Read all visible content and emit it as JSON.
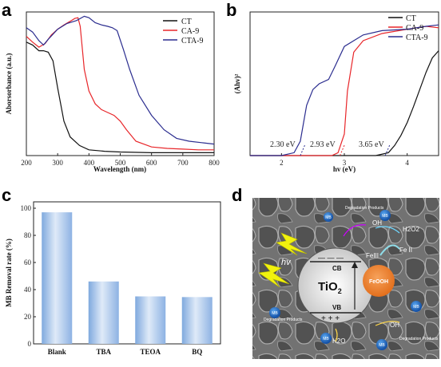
{
  "panels": {
    "a": {
      "letter": "a"
    },
    "b": {
      "letter": "b"
    },
    "c": {
      "letter": "c"
    },
    "d": {
      "letter": "d"
    }
  },
  "colors": {
    "CT": "#111111",
    "CA-9": "#e8262a",
    "CTA-9": "#2b2d8f",
    "bar": "#9fc1e8"
  },
  "chart_data": [
    {
      "id": "a",
      "type": "line",
      "xlabel": "Wavelength (nm)",
      "ylabel": "Aborsorbance (a.u.)",
      "xlim": [
        200,
        800
      ],
      "xticks": [
        200,
        300,
        400,
        500,
        600,
        700,
        800
      ],
      "ylim": [
        0,
        1
      ],
      "legend_position": "top-right",
      "series": [
        {
          "name": "CT",
          "color": "#111111",
          "points": [
            [
              200,
              0.79
            ],
            [
              220,
              0.77
            ],
            [
              240,
              0.73
            ],
            [
              255,
              0.73
            ],
            [
              270,
              0.72
            ],
            [
              285,
              0.66
            ],
            [
              300,
              0.47
            ],
            [
              320,
              0.24
            ],
            [
              340,
              0.13
            ],
            [
              370,
              0.07
            ],
            [
              400,
              0.04
            ],
            [
              450,
              0.03
            ],
            [
              500,
              0.025
            ],
            [
              600,
              0.02
            ],
            [
              700,
              0.02
            ],
            [
              800,
              0.02
            ]
          ]
        },
        {
          "name": "CA-9",
          "color": "#e8262a",
          "points": [
            [
              200,
              0.83
            ],
            [
              220,
              0.79
            ],
            [
              240,
              0.755
            ],
            [
              260,
              0.78
            ],
            [
              280,
              0.84
            ],
            [
              300,
              0.88
            ],
            [
              320,
              0.91
            ],
            [
              340,
              0.935
            ],
            [
              355,
              0.955
            ],
            [
              365,
              0.96
            ],
            [
              372,
              0.9
            ],
            [
              385,
              0.6
            ],
            [
              400,
              0.45
            ],
            [
              420,
              0.36
            ],
            [
              440,
              0.32
            ],
            [
              460,
              0.3
            ],
            [
              480,
              0.28
            ],
            [
              500,
              0.24
            ],
            [
              520,
              0.18
            ],
            [
              550,
              0.1
            ],
            [
              600,
              0.06
            ],
            [
              650,
              0.05
            ],
            [
              700,
              0.045
            ],
            [
              750,
              0.04
            ],
            [
              800,
              0.04
            ]
          ]
        },
        {
          "name": "CTA-9",
          "color": "#2b2d8f",
          "points": [
            [
              200,
              0.89
            ],
            [
              220,
              0.86
            ],
            [
              240,
              0.8
            ],
            [
              255,
              0.77
            ],
            [
              270,
              0.81
            ],
            [
              300,
              0.88
            ],
            [
              330,
              0.92
            ],
            [
              360,
              0.94
            ],
            [
              385,
              0.97
            ],
            [
              400,
              0.96
            ],
            [
              420,
              0.925
            ],
            [
              440,
              0.91
            ],
            [
              460,
              0.9
            ],
            [
              475,
              0.89
            ],
            [
              490,
              0.87
            ],
            [
              510,
              0.74
            ],
            [
              530,
              0.6
            ],
            [
              560,
              0.42
            ],
            [
              600,
              0.28
            ],
            [
              640,
              0.18
            ],
            [
              680,
              0.12
            ],
            [
              720,
              0.1
            ],
            [
              760,
              0.09
            ],
            [
              800,
              0.08
            ]
          ]
        }
      ]
    },
    {
      "id": "b",
      "type": "line",
      "xlabel": "hv (eV)",
      "ylabel": "(Ahv)²",
      "xlim": [
        1.5,
        4.5
      ],
      "xticks": [
        2,
        3,
        4
      ],
      "ylim": [
        0,
        1
      ],
      "legend_position": "top-left",
      "series": [
        {
          "name": "CT",
          "color": "#111111",
          "points": [
            [
              1.5,
              0.0
            ],
            [
              3.0,
              0.0
            ],
            [
              3.5,
              0.0
            ],
            [
              3.7,
              0.02
            ],
            [
              3.8,
              0.07
            ],
            [
              3.9,
              0.14
            ],
            [
              4.0,
              0.23
            ],
            [
              4.1,
              0.34
            ],
            [
              4.2,
              0.46
            ],
            [
              4.3,
              0.58
            ],
            [
              4.4,
              0.68
            ],
            [
              4.5,
              0.73
            ]
          ]
        },
        {
          "name": "CA-9",
          "color": "#e8262a",
          "points": [
            [
              1.5,
              0.0
            ],
            [
              2.5,
              0.0
            ],
            [
              2.8,
              0.0
            ],
            [
              2.9,
              0.02
            ],
            [
              3.0,
              0.15
            ],
            [
              3.05,
              0.45
            ],
            [
              3.15,
              0.72
            ],
            [
              3.3,
              0.8
            ],
            [
              3.6,
              0.85
            ],
            [
              4.0,
              0.88
            ],
            [
              4.3,
              0.9
            ],
            [
              4.5,
              0.89
            ]
          ]
        },
        {
          "name": "CTA-9",
          "color": "#2b2d8f",
          "points": [
            [
              1.5,
              0.0
            ],
            [
              2.0,
              0.0
            ],
            [
              2.2,
              0.02
            ],
            [
              2.3,
              0.1
            ],
            [
              2.4,
              0.35
            ],
            [
              2.5,
              0.46
            ],
            [
              2.6,
              0.5
            ],
            [
              2.75,
              0.53
            ],
            [
              2.85,
              0.62
            ],
            [
              3.0,
              0.76
            ],
            [
              3.3,
              0.84
            ],
            [
              3.6,
              0.87
            ],
            [
              4.0,
              0.88
            ],
            [
              4.3,
              0.9
            ],
            [
              4.5,
              0.91
            ]
          ]
        }
      ],
      "annotations": [
        {
          "text": "2.30 eV",
          "color": "#2b2d8f",
          "x": 2.3
        },
        {
          "text": "2.93 eV",
          "color": "#e8262a",
          "x": 2.93
        },
        {
          "text": "3.65 eV",
          "color": "#2b2d8f",
          "x": 3.65
        }
      ]
    },
    {
      "id": "c",
      "type": "bar",
      "xlabel": "",
      "ylabel": "MB Removal rate (%)",
      "ylim": [
        0,
        100
      ],
      "yticks": [
        0,
        20,
        40,
        60,
        80,
        100
      ],
      "categories": [
        "Blank",
        "TBA",
        "TEOA",
        "BQ"
      ],
      "values": [
        97,
        46,
        35,
        34.5
      ]
    }
  ],
  "schematic": {
    "tio2": "TiO",
    "tio2_sub": "2",
    "cb": "CB",
    "vb": "VB",
    "feooh": "FeOOH",
    "fe3": "FeIII",
    "fe2": "Fe II",
    "hv": "hv",
    "h2o2": "H",
    "h2o2_rest": "2O2",
    "oh": "OH",
    "oh2": "OH",
    "h2o": "H",
    "h2o_rest": "2O",
    "mb": "MB",
    "degradation": "Degradation Products",
    "minus_charges": "— — —",
    "plus_charges": "+ + +"
  }
}
